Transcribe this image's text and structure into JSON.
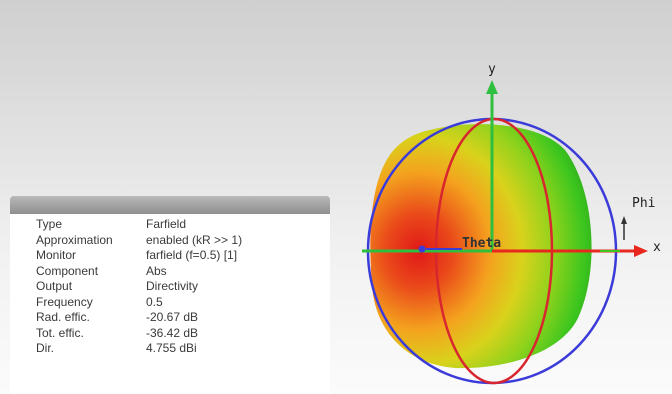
{
  "info_panel": {
    "rows": [
      {
        "key": "Type",
        "value": "Farfield"
      },
      {
        "key": "Approximation",
        "value": "enabled (kR >> 1)"
      },
      {
        "key": "Monitor",
        "value": "farfield (f=0.5) [1]"
      },
      {
        "key": "Component",
        "value": "Abs"
      },
      {
        "key": "Output",
        "value": "Directivity"
      },
      {
        "key": "Frequency",
        "value": "0.5"
      },
      {
        "key": "Rad. effic.",
        "value": "-20.67 dB"
      },
      {
        "key": "Tot. effic.",
        "value": "-36.42 dB"
      },
      {
        "key": "Dir.",
        "value": "4.755 dBi"
      }
    ]
  },
  "axes": {
    "y_label": "y",
    "x_label": "x",
    "phi_label": "Phi",
    "theta_label": "Theta"
  },
  "colors": {
    "pattern_hot": "#e2241c",
    "pattern_mid": "#f5a41c",
    "pattern_cool": "#38c828",
    "y_axis": "#2fbf3f",
    "x_axis": "#e8271f",
    "phi_circle": "#3b3bd9",
    "theta_circle": "#d8262f"
  }
}
